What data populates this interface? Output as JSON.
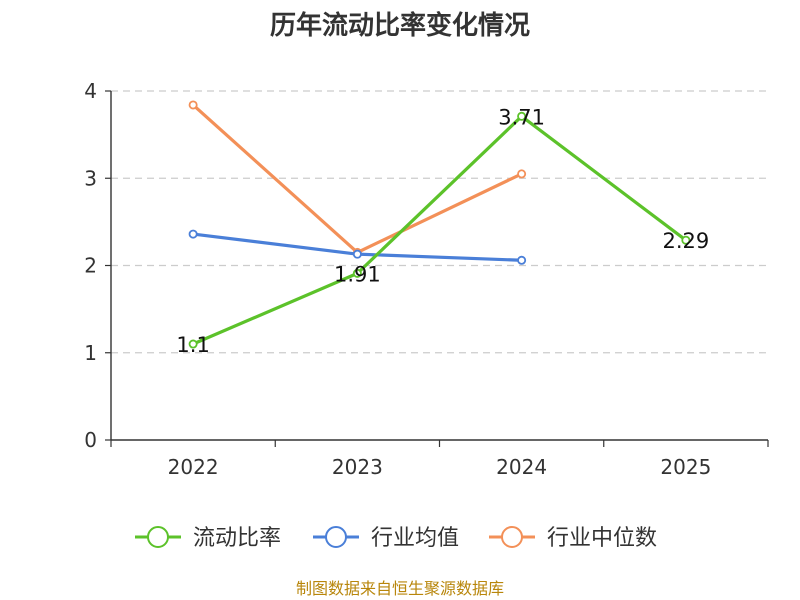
{
  "chart_data": {
    "type": "line",
    "title": "历年流动比率变化情况",
    "categories": [
      "2022",
      "2023",
      "2024",
      "2025"
    ],
    "ylim": [
      0,
      4
    ],
    "yticks": [
      0,
      1,
      2,
      3,
      4
    ],
    "grid": true,
    "legend_position": "bottom",
    "series": [
      {
        "name": "流动比率",
        "color": "#5cc22a",
        "values": [
          1.1,
          1.91,
          3.71,
          2.29
        ],
        "labels": [
          "1.1",
          "1.91",
          "3.71",
          "2.29"
        ]
      },
      {
        "name": "行业均值",
        "color": "#4a7fd8",
        "values": [
          2.36,
          2.13,
          2.06,
          null
        ]
      },
      {
        "name": "行业中位数",
        "color": "#f39058",
        "values": [
          3.84,
          2.15,
          3.05,
          null
        ]
      }
    ]
  },
  "footer": {
    "source": "制图数据来自恒生聚源数据库"
  }
}
